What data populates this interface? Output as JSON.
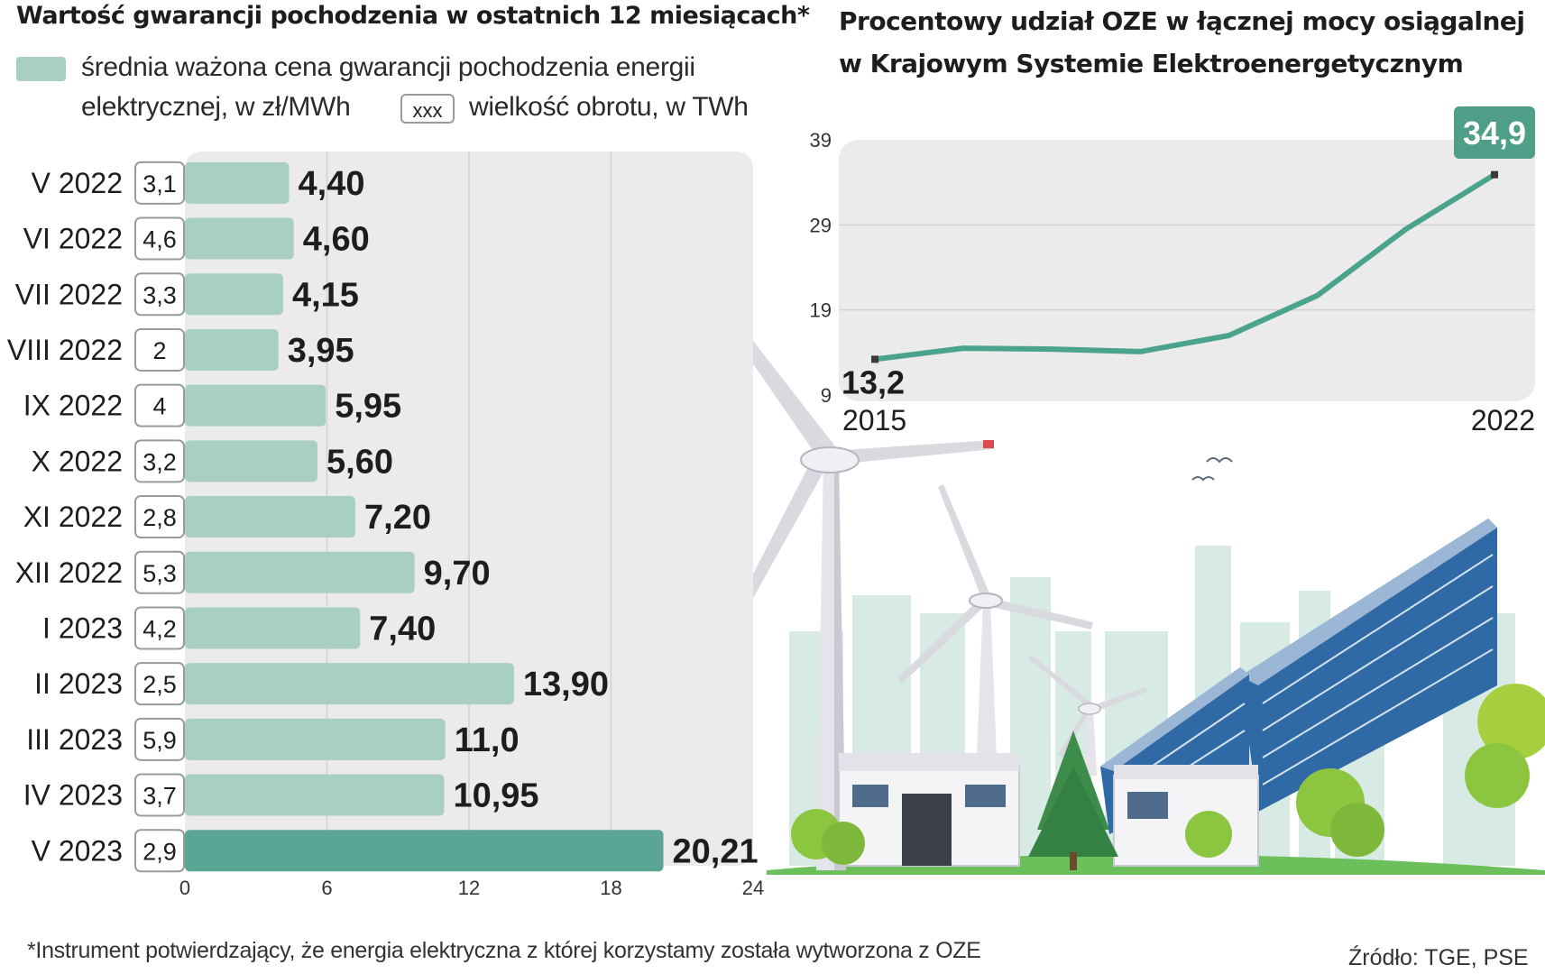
{
  "left_chart": {
    "title": "Wartość gwarancji pochodzenia w ostatnich 12 miesiącach*",
    "legend": {
      "price_label_line1": "średnia ważona cena gwarancji pochodzenia energii",
      "price_label_line2": "elektrycznej, w zł/MWh",
      "volume_box": "xxx",
      "volume_label": "wielkość obrotu, w TWh"
    }
  },
  "right_chart": {
    "title_line1": "Procentowy udział OZE w łącznej mocy osiągalnej",
    "title_line2": "w Krajowym Systemie Elektroenergetycznym",
    "start_label": "13,2",
    "end_label": "34,9",
    "start_year": "2015",
    "end_year": "2022"
  },
  "footnote": "*Instrument potwierdzający, że energia elektryczna z której korzystamy została wytworzona z OZE",
  "source": "Źródło: TGE, PSE",
  "colors": {
    "bar_light": "#a9cfc5",
    "bar_highlight": "#5aa595",
    "line": "#4aa38c",
    "panel_bg": "#ebebeb",
    "grid": "#d2d2d2"
  },
  "chart_data": [
    {
      "type": "bar",
      "orientation": "horizontal",
      "title": "Wartość gwarancji pochodzenia w ostatnich 12 miesiącach*",
      "categories": [
        "V 2022",
        "VI 2022",
        "VII 2022",
        "VIII 2022",
        "IX 2022",
        "X 2022",
        "XI 2022",
        "XII 2022",
        "I 2023",
        "II 2023",
        "III 2023",
        "IV 2023",
        "V 2023"
      ],
      "series": [
        {
          "name": "średnia ważona cena gwarancji pochodzenia energii elektrycznej, w zł/MWh",
          "values": [
            4.4,
            4.6,
            4.15,
            3.95,
            5.95,
            5.6,
            7.2,
            9.7,
            7.4,
            13.9,
            11.0,
            10.95,
            20.21
          ],
          "labels": [
            "4,40",
            "4,60",
            "4,15",
            "3,95",
            "5,95",
            "5,60",
            "7,20",
            "9,70",
            "7,40",
            "13,90",
            "11,0",
            "10,95",
            "20,21"
          ]
        },
        {
          "name": "wielkość obrotu, w TWh",
          "values": [
            3.1,
            4.6,
            3.3,
            2,
            4,
            3.2,
            2.8,
            5.3,
            4.2,
            2.5,
            5.9,
            3.7,
            2.9
          ],
          "labels": [
            "3,1",
            "4,6",
            "3,3",
            "2",
            "4",
            "3,2",
            "2,8",
            "5,3",
            "4,2",
            "2,5",
            "5,9",
            "3,7",
            "2,9"
          ]
        }
      ],
      "xlim": [
        0,
        24
      ],
      "xticks": [
        0,
        6,
        12,
        18,
        24
      ],
      "xtick_labels": [
        "0",
        "6",
        "12",
        "18",
        "24"
      ],
      "highlight_index": 12,
      "grid": true
    },
    {
      "type": "line",
      "title": "Procentowy udział OZE w łącznej mocy osiągalnej w Krajowym Systemie Elektroenergetycznym",
      "x": [
        2015,
        2016,
        2017,
        2018,
        2019,
        2020,
        2021,
        2022
      ],
      "values": [
        13.2,
        14.5,
        14.4,
        14.1,
        16.0,
        20.7,
        28.5,
        34.9
      ],
      "ylim": [
        9,
        39
      ],
      "yticks": [
        9,
        19,
        29,
        39
      ],
      "ytick_labels": [
        "9",
        "19",
        "29",
        "39"
      ],
      "xtick_labels": [
        "2015",
        "2022"
      ],
      "grid": true
    }
  ]
}
